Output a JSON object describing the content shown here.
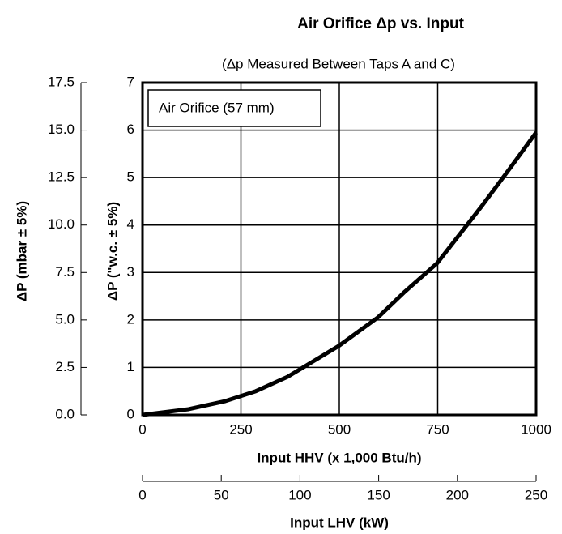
{
  "chart_data": {
    "type": "line",
    "title": "Air Orifice Δp vs. Input",
    "subtitle": "(Δp Measured Between Taps A and C)",
    "xlabel": "Input HHV (x 1,000 Btu/h)",
    "ylabel": "ΔP (\"w.c. ± 5%)",
    "y2label": "ΔP (mbar ± 5%)",
    "x2label": "Input LHV (kW)",
    "x": [
      0,
      117,
      210,
      288,
      368,
      498,
      599,
      667,
      749,
      862,
      934,
      1000
    ],
    "series": [
      {
        "name": "Air Orifice (57 mm)",
        "color": "#000000",
        "values": [
          0,
          0.12,
          0.29,
          0.5,
          0.8,
          1.45,
          2.06,
          2.6,
          3.2,
          4.4,
          5.2,
          5.95
        ]
      }
    ],
    "xlim": [
      0,
      1000
    ],
    "xticks": [
      0,
      250,
      500,
      750,
      1000
    ],
    "ylim": [
      0,
      7
    ],
    "yticks": [
      0,
      1,
      2,
      3,
      4,
      5,
      6,
      7
    ],
    "y2lim": [
      0,
      17.5
    ],
    "y2ticks": [
      {
        "value": 0,
        "label": "0.0"
      },
      2.5,
      {
        "value": 5,
        "label": "5.0"
      },
      7.5,
      {
        "value": 10,
        "label": "10.0"
      },
      12.5,
      {
        "value": 15,
        "label": "15.0"
      },
      17.5
    ],
    "x2lim": [
      0,
      250
    ],
    "x2ticks": [
      0,
      50,
      100,
      150,
      200,
      250
    ],
    "grid": true
  }
}
